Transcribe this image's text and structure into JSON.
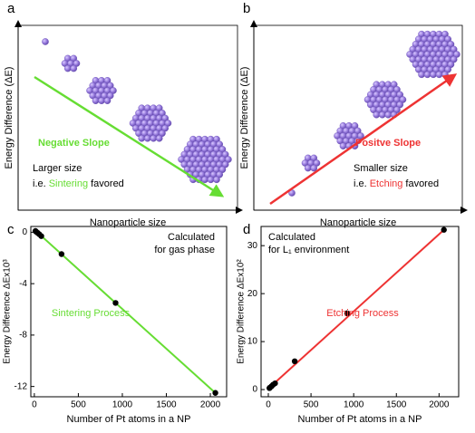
{
  "diagrams": [
    {
      "letter": "a",
      "ylabel": "Energy Difference (ΔE)",
      "xlabel": "Nanoparticle size",
      "slope_label": "Negative Slope",
      "size_note": "Larger size",
      "trend_note": {
        "prefix": "i.e.",
        "highlight": "Sintering",
        "suffix": "favored"
      }
    },
    {
      "letter": "b",
      "ylabel": "Energy Difference (ΔE)",
      "xlabel": "Nanoparticle size",
      "slope_label": "Positve Slope",
      "size_note": "Smaller size",
      "trend_note": {
        "prefix": "i.e.",
        "highlight": "Etching",
        "suffix": "favored"
      }
    }
  ],
  "chart_data": [
    {
      "type": "scatter",
      "letter": "c",
      "xlabel": "Number of Pt atoms in a NP",
      "ylabel": "Energy Difference ΔEx10³",
      "annotations": [
        "Calculated",
        "for gas phase",
        "Sintering Process"
      ],
      "x": [
        13,
        19,
        38,
        55,
        79,
        309,
        923,
        2057
      ],
      "values": [
        0.1,
        0.05,
        -0.05,
        -0.15,
        -0.3,
        -1.7,
        -5.5,
        -12.5
      ],
      "color": "#000000",
      "fit": {
        "x": [
          0,
          2057
        ],
        "values": [
          0.2,
          -12.5
        ],
        "color": "#66dd33"
      },
      "xlim": [
        -40,
        2185
      ],
      "ylim": [
        -12.8,
        0.45
      ],
      "xticks": [
        0,
        500,
        1000,
        1500,
        2000
      ],
      "yticks": [
        0,
        -4,
        -8,
        -12
      ]
    },
    {
      "type": "scatter",
      "letter": "d",
      "xlabel": "Number of Pt atoms in a NP",
      "ylabel": "Energy Difference ΔEx10²",
      "annotations": [
        "Calculated",
        "for L₁ environment",
        "Etching Process"
      ],
      "x": [
        13,
        19,
        38,
        55,
        79,
        309,
        923,
        2057
      ],
      "values": [
        0.3,
        0.4,
        0.7,
        1.0,
        1.3,
        5.9,
        15.9,
        33.3
      ],
      "color": "#000000",
      "fit": {
        "x": [
          0,
          2057
        ],
        "values": [
          0.2,
          33.3
        ],
        "color": "#ee3333"
      },
      "xlim": [
        -85,
        2230
      ],
      "ylim": [
        -1.5,
        34.0
      ],
      "xticks": [
        0,
        500,
        1000,
        1500,
        2000
      ],
      "yticks": [
        0,
        10,
        20,
        30
      ]
    }
  ]
}
